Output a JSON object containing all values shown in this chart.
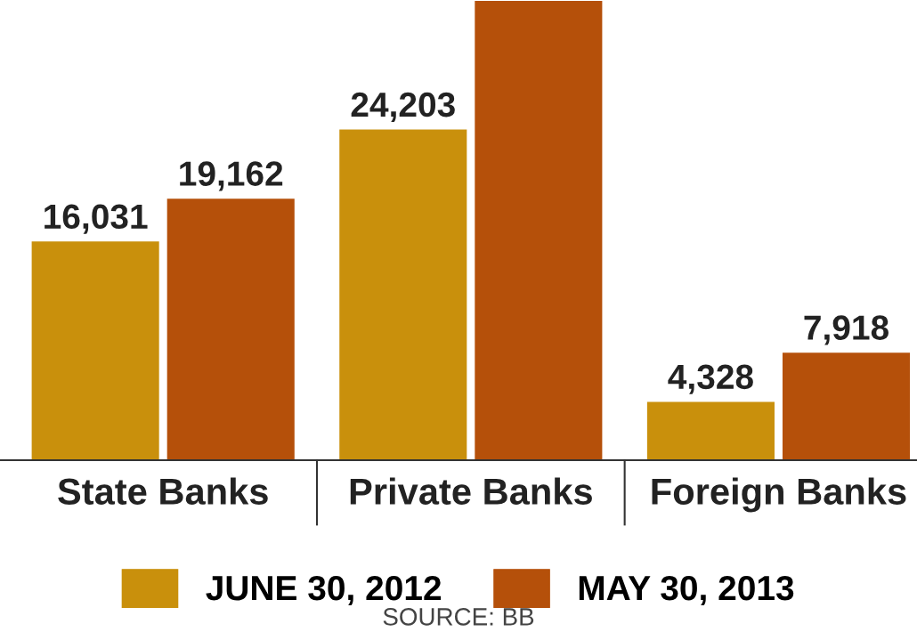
{
  "chart_data": {
    "type": "bar",
    "categories": [
      "State Banks",
      "Private Banks",
      "Foreign Banks"
    ],
    "series": [
      {
        "name": "JUNE 30, 2012",
        "color": "#c9900c",
        "values": [
          16031,
          24203,
          4328
        ],
        "value_labels": [
          "16,031",
          "24,203",
          "4,328"
        ]
      },
      {
        "name": "MAY 30, 2013",
        "color": "#b5500a",
        "values": [
          19162,
          33600,
          7918
        ],
        "value_labels": [
          "19,162",
          null,
          "7,918"
        ]
      }
    ],
    "ylim": [
      0,
      33600
    ],
    "tick_labels": "x",
    "grid": false,
    "legend": "bottom",
    "annotations": [
      "SOURCE: BB"
    ]
  }
}
